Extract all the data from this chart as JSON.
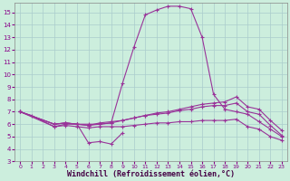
{
  "background_color": "#cceedd",
  "grid_color": "#aacccc",
  "line_color": "#993399",
  "marker_color": "#993399",
  "xlabel": "Windchill (Refroidissement éolien,°C)",
  "xlabel_fontsize": 6.0,
  "xlim": [
    -0.5,
    23.5
  ],
  "ylim": [
    3,
    15.8
  ],
  "yticks": [
    3,
    4,
    5,
    6,
    7,
    8,
    9,
    10,
    11,
    12,
    13,
    14,
    15
  ],
  "xticks": [
    0,
    1,
    2,
    3,
    4,
    5,
    6,
    7,
    8,
    9,
    10,
    11,
    12,
    13,
    14,
    15,
    16,
    17,
    18,
    19,
    20,
    21,
    22,
    23
  ],
  "series": [
    [
      7.0,
      6.7,
      null,
      5.8,
      6.0,
      6.0,
      4.5,
      4.6,
      4.4,
      5.3,
      null,
      null,
      null,
      null,
      null,
      null,
      null,
      null,
      null,
      null,
      null,
      null,
      null,
      null
    ],
    [
      7.0,
      null,
      null,
      6.0,
      6.1,
      6.0,
      5.9,
      6.1,
      6.2,
      6.3,
      6.5,
      6.7,
      6.9,
      7.0,
      7.2,
      7.4,
      7.6,
      7.7,
      7.8,
      8.2,
      7.4,
      7.2,
      6.3,
      5.5
    ],
    [
      7.0,
      null,
      null,
      6.0,
      6.1,
      6.0,
      5.9,
      6.0,
      6.1,
      6.3,
      6.5,
      6.7,
      6.8,
      6.9,
      7.1,
      7.2,
      7.4,
      7.5,
      7.5,
      7.7,
      7.0,
      6.8,
      5.9,
      5.1
    ],
    [
      7.0,
      null,
      null,
      5.8,
      5.9,
      5.8,
      5.7,
      5.8,
      5.8,
      5.8,
      5.9,
      6.0,
      6.1,
      6.1,
      6.2,
      6.2,
      6.3,
      6.3,
      6.3,
      6.4,
      5.8,
      5.6,
      5.0,
      4.7
    ],
    [
      7.0,
      null,
      null,
      6.0,
      6.1,
      6.0,
      6.0,
      6.0,
      6.1,
      9.3,
      12.2,
      14.8,
      15.2,
      15.5,
      15.5,
      15.3,
      13.0,
      8.4,
      7.2,
      7.0,
      6.8,
      6.2,
      5.6,
      5.0
    ]
  ]
}
